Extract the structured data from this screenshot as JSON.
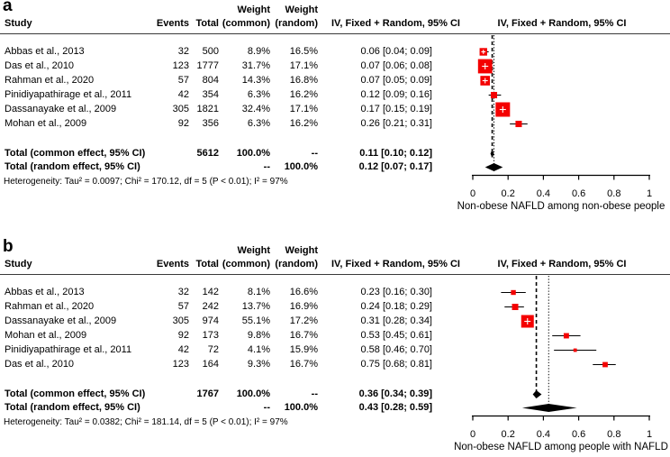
{
  "chart_data": [
    {
      "type": "forest",
      "panel_label": "a",
      "marker_color": "#F40000",
      "columns": {
        "study": "Study",
        "events": "Events",
        "total": "Total",
        "weight1_line1": "Weight",
        "weight1_line2": "(common)",
        "weight2_line1": "Weight",
        "weight2_line2": "(random)",
        "ci_text_header": "IV, Fixed + Random, 95% CI",
        "plot_header": "IV, Fixed + Random, 95% CI"
      },
      "studies": [
        {
          "study": "Abbas et al., 2013",
          "events": "32",
          "total": "500",
          "weight_common": "8.9%",
          "weight_random": "16.5%",
          "estimate": 0.06,
          "lower": 0.04,
          "upper": 0.09,
          "ci_text": "0.06 [0.04; 0.09]"
        },
        {
          "study": "Das et al., 2010",
          "events": "123",
          "total": "1777",
          "weight_common": "31.7%",
          "weight_random": "17.1%",
          "estimate": 0.07,
          "lower": 0.06,
          "upper": 0.08,
          "ci_text": "0.07 [0.06; 0.08]"
        },
        {
          "study": "Rahman et al., 2020",
          "events": "57",
          "total": "804",
          "weight_common": "14.3%",
          "weight_random": "16.8%",
          "estimate": 0.07,
          "lower": 0.05,
          "upper": 0.09,
          "ci_text": "0.07 [0.05; 0.09]"
        },
        {
          "study": "Pinidiyapathirage et al., 2011",
          "events": "42",
          "total": "354",
          "weight_common": "6.3%",
          "weight_random": "16.2%",
          "estimate": 0.12,
          "lower": 0.09,
          "upper": 0.16,
          "ci_text": "0.12 [0.09; 0.16]"
        },
        {
          "study": "Dassanayake et al., 2009",
          "events": "305",
          "total": "1821",
          "weight_common": "32.4%",
          "weight_random": "17.1%",
          "estimate": 0.17,
          "lower": 0.15,
          "upper": 0.19,
          "ci_text": "0.17 [0.15; 0.19]"
        },
        {
          "study": "Mohan et al., 2009",
          "events": "92",
          "total": "356",
          "weight_common": "6.3%",
          "weight_random": "16.2%",
          "estimate": 0.26,
          "lower": 0.21,
          "upper": 0.31,
          "ci_text": "0.26 [0.21; 0.31]"
        }
      ],
      "totals": [
        {
          "label": "Total (common effect, 95% CI)",
          "total": "5612",
          "weight_common": "100.0%",
          "weight_random": "--",
          "estimate": 0.11,
          "lower": 0.1,
          "upper": 0.12,
          "ci_text": "0.11 [0.10; 0.12]"
        },
        {
          "label": "Total (random effect, 95% CI)",
          "total": "",
          "weight_common": "--",
          "weight_random": "100.0%",
          "estimate": 0.12,
          "lower": 0.07,
          "upper": 0.17,
          "ci_text": "0.12 [0.07; 0.17]"
        }
      ],
      "heterogeneity": "Heterogeneity: Tau² = 0.0097; Chi² = 170.12, df = 5 (P < 0.01); I² = 97%",
      "axis": {
        "min": 0,
        "max": 1,
        "tick_values": [
          0,
          0.2,
          0.4,
          0.6,
          0.8,
          1
        ],
        "ticks": [
          "0",
          "0.2",
          "0.4",
          "0.6",
          "0.8",
          "1"
        ],
        "label": "Non-obese NAFLD among non-obese people"
      }
    },
    {
      "type": "forest",
      "panel_label": "b",
      "marker_color": "#F40000",
      "columns": {
        "study": "Study",
        "events": "Events",
        "total": "Total",
        "weight1_line1": "Weight",
        "weight1_line2": "(common)",
        "weight2_line1": "Weight",
        "weight2_line2": "(random)",
        "ci_text_header": "IV, Fixed + Random, 95% CI",
        "plot_header": "IV, Fixed + Random, 95% CI"
      },
      "studies": [
        {
          "study": "Abbas et al., 2013",
          "events": "32",
          "total": "142",
          "weight_common": "8.1%",
          "weight_random": "16.6%",
          "estimate": 0.23,
          "lower": 0.16,
          "upper": 0.3,
          "ci_text": "0.23 [0.16; 0.30]"
        },
        {
          "study": "Rahman et al., 2020",
          "events": "57",
          "total": "242",
          "weight_common": "13.7%",
          "weight_random": "16.9%",
          "estimate": 0.24,
          "lower": 0.18,
          "upper": 0.29,
          "ci_text": "0.24 [0.18; 0.29]"
        },
        {
          "study": "Dassanayake et al., 2009",
          "events": "305",
          "total": "974",
          "weight_common": "55.1%",
          "weight_random": "17.2%",
          "estimate": 0.31,
          "lower": 0.28,
          "upper": 0.34,
          "ci_text": "0.31 [0.28; 0.34]"
        },
        {
          "study": "Mohan et al., 2009",
          "events": "92",
          "total": "173",
          "weight_common": "9.8%",
          "weight_random": "16.7%",
          "estimate": 0.53,
          "lower": 0.45,
          "upper": 0.61,
          "ci_text": "0.53 [0.45; 0.61]"
        },
        {
          "study": "Pinidiyapathirage et al., 2011",
          "events": "42",
          "total": "72",
          "weight_common": "4.1%",
          "weight_random": "15.9%",
          "estimate": 0.58,
          "lower": 0.46,
          "upper": 0.7,
          "ci_text": "0.58 [0.46; 0.70]"
        },
        {
          "study": "Das et al., 2010",
          "events": "123",
          "total": "164",
          "weight_common": "9.3%",
          "weight_random": "16.7%",
          "estimate": 0.75,
          "lower": 0.68,
          "upper": 0.81,
          "ci_text": "0.75 [0.68; 0.81]"
        }
      ],
      "totals": [
        {
          "label": "Total (common effect, 95% CI)",
          "total": "1767",
          "weight_common": "100.0%",
          "weight_random": "--",
          "estimate": 0.36,
          "lower": 0.34,
          "upper": 0.39,
          "ci_text": "0.36 [0.34; 0.39]"
        },
        {
          "label": "Total (random effect, 95% CI)",
          "total": "",
          "weight_common": "--",
          "weight_random": "100.0%",
          "estimate": 0.43,
          "lower": 0.28,
          "upper": 0.59,
          "ci_text": "0.43 [0.28; 0.59]"
        }
      ],
      "heterogeneity": "Heterogeneity: Tau² = 0.0382; Chi² = 181.14, df = 5 (P < 0.01); I² = 97%",
      "axis": {
        "min": 0,
        "max": 1,
        "tick_values": [
          0,
          0.2,
          0.4,
          0.6,
          0.8,
          1
        ],
        "ticks": [
          "0",
          "0.2",
          "0.4",
          "0.6",
          "0.8",
          "1"
        ],
        "label": "Non-obese NAFLD among people with NAFLD"
      }
    }
  ]
}
